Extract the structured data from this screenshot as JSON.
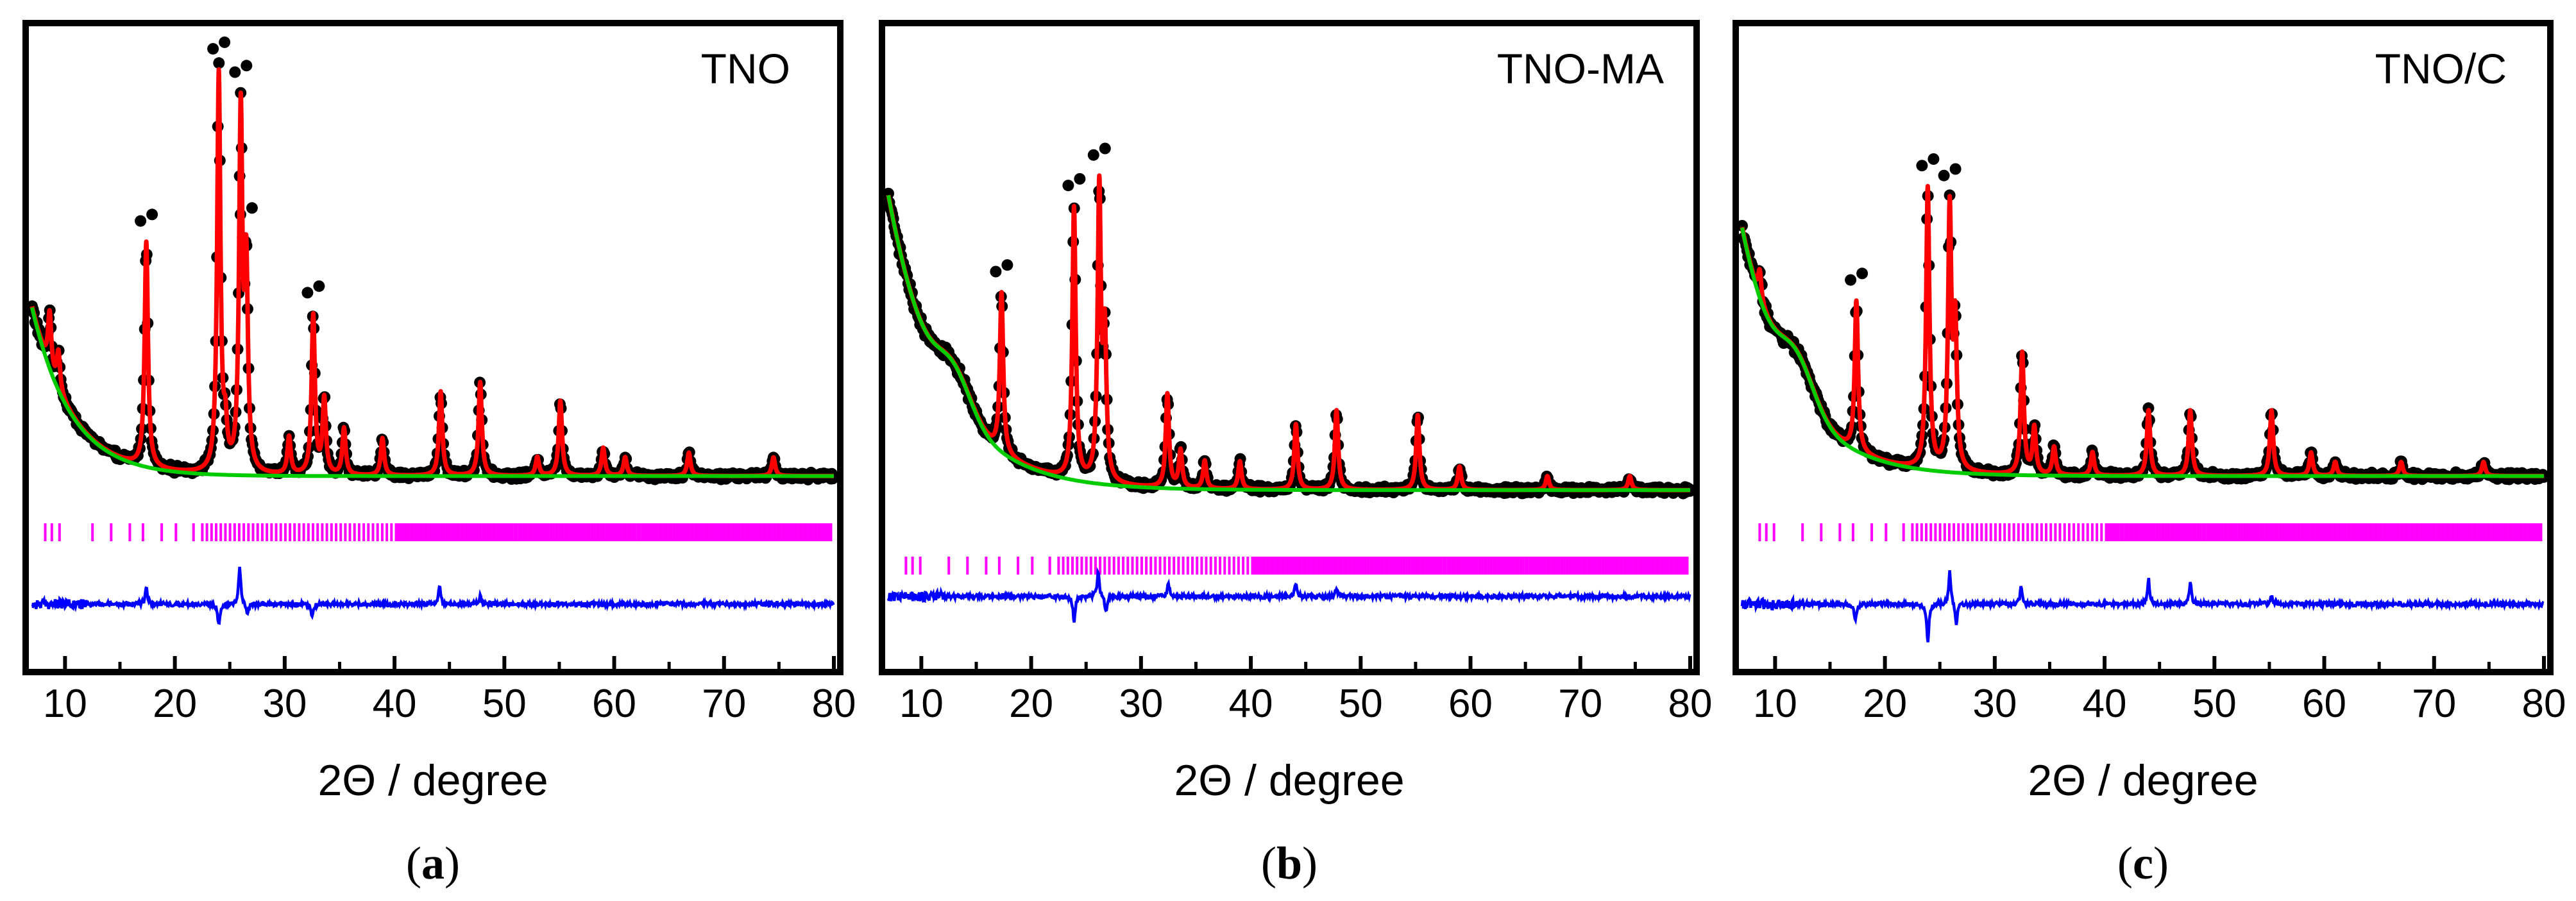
{
  "chart_data": [
    {
      "type": "line",
      "panel": "a",
      "caption": {
        "open": "(",
        "letter": "a",
        "close": ")"
      },
      "title": "TNO",
      "xlabel": "2Θ / degree",
      "ylabel": "",
      "xlim": [
        7,
        80
      ],
      "xticks": [
        "10",
        "20",
        "30",
        "40",
        "50",
        "60",
        "70",
        "80"
      ],
      "xtick_values": [
        10,
        20,
        30,
        40,
        50,
        60,
        70,
        80
      ],
      "ylim": [
        0,
        100
      ],
      "background": {
        "start": 48,
        "end": 12,
        "bump_center": 11,
        "bump_height": 0,
        "decay": 0.28
      },
      "peaks": [
        {
          "x": 8.6,
          "h": 12
        },
        {
          "x": 9.4,
          "h": 8
        },
        {
          "x": 17.4,
          "h": 48
        },
        {
          "x": 24.0,
          "h": 85
        },
        {
          "x": 24.6,
          "h": 8
        },
        {
          "x": 26.0,
          "h": 76
        },
        {
          "x": 26.5,
          "h": 42
        },
        {
          "x": 30.4,
          "h": 8
        },
        {
          "x": 32.6,
          "h": 34
        },
        {
          "x": 33.6,
          "h": 16
        },
        {
          "x": 35.4,
          "h": 10
        },
        {
          "x": 38.9,
          "h": 8
        },
        {
          "x": 44.2,
          "h": 18
        },
        {
          "x": 47.8,
          "h": 20
        },
        {
          "x": 53.0,
          "h": 4
        },
        {
          "x": 55.1,
          "h": 16
        },
        {
          "x": 59.0,
          "h": 6
        },
        {
          "x": 61.0,
          "h": 4
        },
        {
          "x": 66.8,
          "h": 5
        },
        {
          "x": 74.5,
          "h": 4
        }
      ],
      "bragg_row": 1,
      "diff_spikes": [
        {
          "x": 17.4,
          "h": 4
        },
        {
          "x": 24.0,
          "h": -5
        },
        {
          "x": 25.9,
          "h": 9
        },
        {
          "x": 26.6,
          "h": -3
        },
        {
          "x": 32.5,
          "h": -3
        },
        {
          "x": 44.1,
          "h": 4
        },
        {
          "x": 47.8,
          "h": 2
        }
      ],
      "colors": {
        "observed": "#000000",
        "calculated": "#ff0000",
        "background": "#00cc00",
        "bragg": "#ff00ff",
        "difference": "#0000ff"
      }
    },
    {
      "type": "line",
      "panel": "b",
      "caption": {
        "open": "(",
        "letter": "b",
        "close": ")"
      },
      "title": "TNO-MA",
      "xlabel": "2Θ / degree",
      "ylabel": "",
      "xlim": [
        7,
        80
      ],
      "xticks": [
        "10",
        "20",
        "30",
        "40",
        "50",
        "60",
        "70",
        "80"
      ],
      "xtick_values": [
        10,
        20,
        30,
        40,
        50,
        60,
        70,
        80
      ],
      "ylim": [
        0,
        100
      ],
      "background": {
        "start": 72,
        "end": 9,
        "bump_center": 13,
        "bump_height": 8,
        "decay": 0.2
      },
      "peaks": [
        {
          "x": 17.3,
          "h": 34
        },
        {
          "x": 23.9,
          "h": 58
        },
        {
          "x": 26.2,
          "h": 62
        },
        {
          "x": 26.7,
          "h": 30
        },
        {
          "x": 32.4,
          "h": 20
        },
        {
          "x": 33.6,
          "h": 8
        },
        {
          "x": 35.8,
          "h": 6
        },
        {
          "x": 39.0,
          "h": 6
        },
        {
          "x": 44.1,
          "h": 14
        },
        {
          "x": 47.8,
          "h": 17
        },
        {
          "x": 55.2,
          "h": 16
        },
        {
          "x": 59.0,
          "h": 5
        },
        {
          "x": 67.0,
          "h": 3
        },
        {
          "x": 74.5,
          "h": 3
        }
      ],
      "bragg_row": 2,
      "diff_spikes": [
        {
          "x": 23.9,
          "h": -6
        },
        {
          "x": 26.1,
          "h": 6
        },
        {
          "x": 26.8,
          "h": -4
        },
        {
          "x": 32.5,
          "h": 3
        },
        {
          "x": 44.1,
          "h": 3
        },
        {
          "x": 47.8,
          "h": 2
        }
      ],
      "colors": {
        "observed": "#000000",
        "calculated": "#ff0000",
        "background": "#00cc00",
        "bragg": "#ff00ff",
        "difference": "#0000ff"
      }
    },
    {
      "type": "line",
      "panel": "c",
      "caption": {
        "open": "(",
        "letter": "c",
        "close": ")"
      },
      "title": "TNO/C",
      "xlabel": "2Θ / degree",
      "ylabel": "",
      "xlim": [
        7,
        80
      ],
      "xticks": [
        "10",
        "20",
        "30",
        "40",
        "50",
        "60",
        "70",
        "80"
      ],
      "xtick_values": [
        10,
        20,
        30,
        40,
        50,
        60,
        70,
        80
      ],
      "ylim": [
        0,
        100
      ],
      "background": {
        "start": 65,
        "end": 12,
        "bump_center": 12,
        "bump_height": 9,
        "decay": 0.22
      },
      "peaks": [
        {
          "x": 8.6,
          "h": 6
        },
        {
          "x": 17.4,
          "h": 32
        },
        {
          "x": 23.9,
          "h": 60
        },
        {
          "x": 25.9,
          "h": 55
        },
        {
          "x": 26.4,
          "h": 30
        },
        {
          "x": 32.5,
          "h": 26
        },
        {
          "x": 33.6,
          "h": 10
        },
        {
          "x": 35.4,
          "h": 6
        },
        {
          "x": 38.9,
          "h": 5
        },
        {
          "x": 44.0,
          "h": 14
        },
        {
          "x": 47.8,
          "h": 14
        },
        {
          "x": 55.2,
          "h": 14
        },
        {
          "x": 58.8,
          "h": 5
        },
        {
          "x": 61.0,
          "h": 3
        },
        {
          "x": 67.0,
          "h": 3
        },
        {
          "x": 74.5,
          "h": 3
        }
      ],
      "bragg_row": 1,
      "diff_spikes": [
        {
          "x": 17.3,
          "h": -4
        },
        {
          "x": 23.9,
          "h": -9
        },
        {
          "x": 25.9,
          "h": 8
        },
        {
          "x": 26.5,
          "h": -5
        },
        {
          "x": 32.4,
          "h": 4
        },
        {
          "x": 44.0,
          "h": 6
        },
        {
          "x": 47.8,
          "h": 5
        },
        {
          "x": 55.2,
          "h": 2
        }
      ],
      "colors": {
        "observed": "#000000",
        "calculated": "#ff0000",
        "background": "#00cc00",
        "bragg": "#ff00ff",
        "difference": "#0000ff"
      }
    }
  ]
}
